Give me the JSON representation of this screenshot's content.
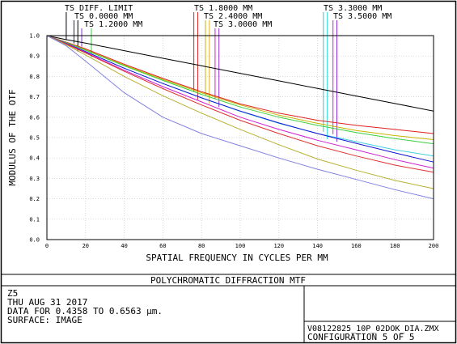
{
  "chart_data": {
    "type": "line",
    "title": "POLYCHROMATIC DIFFRACTION MTF",
    "xlabel": "SPATIAL FREQUENCY IN CYCLES PER MM",
    "ylabel": "MODULUS OF THE OTF",
    "xlim": [
      0,
      200
    ],
    "ylim": [
      0,
      1
    ],
    "x_ticks": [
      "0",
      "20",
      "40",
      "60",
      "80",
      "100",
      "120",
      "140",
      "160",
      "180",
      "200"
    ],
    "y_ticks": [
      "0.0",
      "0.1",
      "0.2",
      "0.3",
      "0.4",
      "0.5",
      "0.6",
      "0.7",
      "0.8",
      "0.9",
      "1.0"
    ],
    "grid": true,
    "legend": [
      {
        "label": "TS DIFF. LIMIT",
        "color": "#000000",
        "markers": [
          {
            "color": "#000000",
            "x": 10
          }
        ]
      },
      {
        "label": "TS 0.0000 MM",
        "color": "#1515d6",
        "markers": [
          {
            "color": "#1515d6",
            "x": 14
          },
          {
            "color": "#000000",
            "x": 16
          }
        ]
      },
      {
        "label": "TS 1.2000 MM",
        "color": "#8b2cd6",
        "markers": [
          {
            "color": "#8b2cd6",
            "x": 18
          },
          {
            "color": "#3ad040",
            "x": 23
          }
        ]
      },
      {
        "label": "TS 1.8000 MM",
        "color": "#e02020",
        "markers": [
          {
            "color": "#e02020",
            "x": 76
          },
          {
            "color": "#e02020",
            "x": 78
          }
        ]
      },
      {
        "label": "TS 2.4000 MM",
        "color": "#c8b400",
        "markers": [
          {
            "color": "#c8b400",
            "x": 82
          },
          {
            "color": "#e0b030",
            "x": 84
          }
        ]
      },
      {
        "label": "TS 3.0000 MM",
        "color": "#d020d0",
        "markers": [
          {
            "color": "#d020d0",
            "x": 87
          },
          {
            "color": "#8b2cd6",
            "x": 89
          }
        ]
      },
      {
        "label": "TS 3.3000 MM",
        "color": "#20d0d0",
        "markers": [
          {
            "color": "#20d0d0",
            "x": 143
          },
          {
            "color": "#40e0e0",
            "x": 145
          }
        ]
      },
      {
        "label": "TS 3.5000 MM",
        "color": "#d020d0",
        "markers": [
          {
            "color": "#d020d0",
            "x": 148
          },
          {
            "color": "#8b2cd6",
            "x": 150
          }
        ]
      }
    ],
    "series": [
      {
        "color": "#000000",
        "x": [
          0,
          10,
          20,
          40,
          60,
          80,
          100,
          120,
          140,
          160,
          180,
          200
        ],
        "y": [
          1.0,
          0.98,
          0.963,
          0.926,
          0.889,
          0.852,
          0.815,
          0.778,
          0.741,
          0.704,
          0.667,
          0.63
        ]
      },
      {
        "color": "#e02020",
        "x": [
          0,
          10,
          20,
          40,
          60,
          80,
          100,
          120,
          140,
          160,
          180,
          200
        ],
        "y": [
          1.0,
          0.968,
          0.935,
          0.86,
          0.79,
          0.725,
          0.665,
          0.62,
          0.585,
          0.56,
          0.54,
          0.52
        ]
      },
      {
        "color": "#c8b400",
        "x": [
          0,
          10,
          20,
          40,
          60,
          80,
          100,
          120,
          140,
          160,
          180,
          200
        ],
        "y": [
          1.0,
          0.966,
          0.93,
          0.855,
          0.785,
          0.72,
          0.66,
          0.61,
          0.57,
          0.535,
          0.51,
          0.49
        ]
      },
      {
        "color": "#3ad040",
        "x": [
          0,
          10,
          20,
          40,
          60,
          80,
          100,
          120,
          140,
          160,
          180,
          200
        ],
        "y": [
          1.0,
          0.965,
          0.928,
          0.852,
          0.78,
          0.712,
          0.65,
          0.6,
          0.56,
          0.525,
          0.495,
          0.47
        ]
      },
      {
        "color": "#40d0e0",
        "x": [
          0,
          10,
          20,
          40,
          60,
          80,
          100,
          120,
          140,
          160,
          180,
          200
        ],
        "y": [
          1.0,
          0.962,
          0.922,
          0.84,
          0.765,
          0.695,
          0.628,
          0.57,
          0.52,
          0.48,
          0.44,
          0.41
        ]
      },
      {
        "color": "#1515d6",
        "x": [
          0,
          10,
          20,
          40,
          60,
          80,
          100,
          120,
          140,
          160,
          180,
          200
        ],
        "y": [
          1.0,
          0.962,
          0.922,
          0.84,
          0.765,
          0.695,
          0.63,
          0.572,
          0.52,
          0.472,
          0.425,
          0.38
        ]
      },
      {
        "color": "#d020d0",
        "x": [
          0,
          10,
          20,
          40,
          60,
          80,
          100,
          120,
          140,
          160,
          180,
          200
        ],
        "y": [
          1.0,
          0.96,
          0.918,
          0.83,
          0.75,
          0.675,
          0.6,
          0.54,
          0.487,
          0.44,
          0.392,
          0.35
        ]
      },
      {
        "color": "#e03030",
        "x": [
          0,
          10,
          20,
          40,
          60,
          80,
          100,
          120,
          140,
          160,
          180,
          200
        ],
        "y": [
          1.0,
          0.958,
          0.915,
          0.825,
          0.74,
          0.66,
          0.585,
          0.52,
          0.46,
          0.41,
          0.365,
          0.33
        ]
      },
      {
        "color": "#b8b030",
        "x": [
          0,
          10,
          20,
          40,
          60,
          80,
          100,
          120,
          140,
          160,
          180,
          200
        ],
        "y": [
          1.0,
          0.955,
          0.905,
          0.8,
          0.705,
          0.62,
          0.54,
          0.465,
          0.395,
          0.34,
          0.29,
          0.25
        ]
      },
      {
        "color": "#8080e0",
        "x": [
          0,
          10,
          20,
          40,
          60,
          80,
          100,
          120,
          140,
          160,
          180,
          200
        ],
        "y": [
          1.0,
          0.95,
          0.875,
          0.72,
          0.6,
          0.52,
          0.46,
          0.4,
          0.345,
          0.295,
          0.245,
          0.2
        ]
      }
    ]
  },
  "info": {
    "line1": "Z5",
    "line2": "THU AUG 31 2017",
    "line3": "DATA FOR 0.4358 TO 0.6563 µm.",
    "line4": "SURFACE: IMAGE",
    "file": "V08122825_10P_02DOK_DIA.ZMX",
    "config": "CONFIGURATION 5 OF 5"
  }
}
